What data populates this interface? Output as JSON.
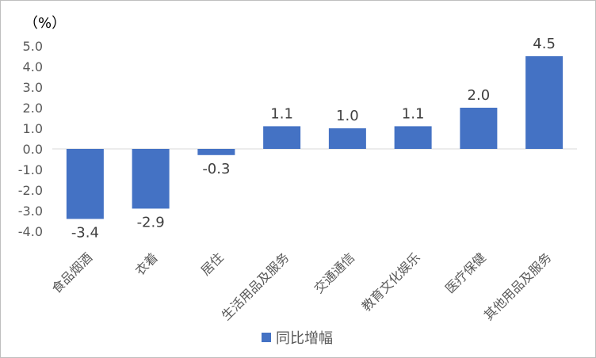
{
  "chart_data": {
    "type": "bar",
    "unit_label": "（%）",
    "categories": [
      "食品烟酒",
      "衣着",
      "居住",
      "生活用品及服务",
      "交通通信",
      "教育文化娱乐",
      "医疗保健",
      "其他用品及服务"
    ],
    "series": [
      {
        "name": "同比增幅",
        "values": [
          -3.4,
          -2.9,
          -0.3,
          1.1,
          1.0,
          1.1,
          2.0,
          4.5
        ],
        "color": "#4472C4"
      }
    ],
    "data_labels": [
      "-3.4",
      "-2.9",
      "-0.3",
      "1.1",
      "1.0",
      "1.1",
      "2.0",
      "4.5"
    ],
    "ylim": [
      -4.0,
      5.0
    ],
    "yticks": [
      5.0,
      4.0,
      3.0,
      2.0,
      1.0,
      0.0,
      -1.0,
      -2.0,
      -3.0,
      -4.0
    ],
    "ytick_labels": [
      "5.0",
      "4.0",
      "3.0",
      "2.0",
      "1.0",
      "0.0",
      "-1.0",
      "-2.0",
      "-3.0",
      "-4.0"
    ],
    "legend_position": "bottom",
    "grid": false,
    "xlabel": "",
    "ylabel": ""
  }
}
